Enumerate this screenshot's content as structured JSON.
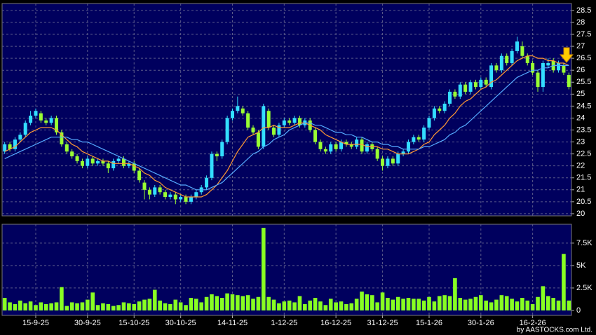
{
  "chart_data": [
    {
      "type": "candlestick",
      "xlim": [
        -0.5,
        109.5
      ],
      "xticks": [
        {
          "value": 6,
          "label": "15-9-25"
        },
        {
          "value": 16,
          "label": "30-9-25"
        },
        {
          "value": 25,
          "label": "15-10-25"
        },
        {
          "value": 34,
          "label": "30-10-25"
        },
        {
          "value": 44,
          "label": "14-11-25"
        },
        {
          "value": 54,
          "label": "1-12-25"
        },
        {
          "value": 64,
          "label": "16-12-25"
        },
        {
          "value": 73,
          "label": "31-12-25"
        },
        {
          "value": 82,
          "label": "15-1-26"
        },
        {
          "value": 92,
          "label": "30-1-26"
        },
        {
          "value": 102,
          "label": "16-2-26"
        }
      ],
      "ylim": [
        19.91,
        28.79
      ],
      "yticks": [
        20,
        20.5,
        21,
        21.5,
        22,
        22.5,
        23,
        23.5,
        24,
        24.5,
        25,
        25.5,
        26,
        26.5,
        27,
        27.5,
        28,
        28.5
      ],
      "grid": true,
      "up_color": "#33ddff",
      "down_color": "#99ff33",
      "series": [
        {
          "type": "candlestick",
          "open": [
            22.6,
            22.9,
            22.7,
            23.1,
            23.3,
            23.8,
            24.1,
            24.2,
            23.9,
            23.8,
            24.0,
            23.4,
            22.9,
            22.6,
            22.4,
            22.2,
            22.0,
            22.3,
            22.1,
            22.2,
            22.1,
            21.9,
            22.2,
            22.3,
            22.0,
            22.1,
            21.8,
            21.3,
            21.0,
            20.8,
            21.1,
            20.9,
            20.7,
            20.8,
            20.6,
            20.7,
            20.5,
            20.7,
            20.9,
            21.1,
            21.5,
            22.5,
            22.4,
            23.0,
            24.0,
            24.3,
            24.4,
            24.2,
            23.6,
            23.4,
            22.8,
            24.3,
            23.6,
            23.3,
            23.7,
            23.9,
            23.8,
            24.0,
            23.7,
            23.9,
            23.5,
            23.0,
            22.7,
            22.6,
            22.9,
            22.7,
            23.0,
            22.9,
            22.8,
            23.1,
            22.6,
            22.9,
            22.7,
            22.3,
            22.0,
            22.3,
            22.1,
            22.5,
            22.6,
            23.0,
            23.2,
            23.1,
            23.6,
            24.0,
            24.4,
            24.3,
            24.6,
            25.1,
            24.9,
            25.4,
            25.1,
            25.5,
            25.3,
            25.6,
            25.3,
            26.2,
            26.0,
            26.6,
            26.3,
            26.8,
            27.0,
            26.6,
            26.3,
            25.9,
            25.3,
            26.2,
            26.4,
            26.0,
            26.2,
            25.8
          ],
          "high": [
            23.0,
            23.0,
            23.2,
            23.4,
            23.9,
            24.3,
            24.4,
            24.3,
            24.0,
            24.1,
            24.1,
            23.5,
            23.0,
            22.7,
            22.5,
            22.3,
            22.4,
            22.4,
            22.3,
            22.3,
            22.2,
            22.3,
            22.4,
            22.4,
            22.2,
            22.2,
            21.9,
            21.4,
            21.1,
            21.2,
            21.2,
            21.0,
            20.9,
            20.9,
            20.8,
            20.8,
            20.8,
            21.0,
            21.2,
            21.6,
            22.6,
            22.6,
            23.1,
            24.1,
            24.4,
            24.9,
            24.5,
            24.3,
            23.7,
            23.5,
            24.6,
            24.4,
            23.7,
            23.8,
            24.0,
            24.0,
            24.1,
            24.1,
            24.0,
            24.0,
            23.6,
            23.1,
            22.8,
            23.0,
            23.0,
            23.1,
            23.1,
            23.0,
            23.2,
            23.2,
            23.0,
            23.0,
            22.8,
            22.4,
            22.4,
            22.4,
            22.6,
            22.7,
            23.1,
            23.3,
            23.3,
            23.7,
            24.1,
            24.5,
            24.5,
            24.7,
            25.2,
            25.2,
            25.5,
            25.5,
            25.6,
            25.6,
            25.7,
            25.7,
            26.3,
            26.3,
            26.7,
            26.7,
            26.9,
            27.4,
            27.2,
            26.7,
            26.4,
            26.0,
            26.4,
            26.5,
            26.5,
            26.4,
            26.3,
            25.9
          ],
          "low": [
            22.5,
            22.6,
            22.6,
            23.0,
            23.2,
            23.7,
            24.0,
            23.8,
            23.7,
            23.7,
            23.3,
            22.8,
            22.5,
            22.3,
            22.1,
            21.9,
            21.9,
            22.0,
            22.0,
            22.0,
            21.7,
            21.8,
            22.1,
            21.9,
            21.9,
            21.7,
            21.3,
            20.6,
            20.6,
            20.7,
            20.8,
            20.6,
            20.6,
            20.4,
            20.5,
            20.4,
            20.4,
            20.6,
            20.8,
            21.0,
            21.4,
            22.2,
            22.3,
            22.9,
            23.9,
            24.2,
            24.1,
            23.5,
            23.3,
            22.7,
            22.7,
            23.5,
            23.2,
            23.2,
            23.6,
            23.7,
            23.7,
            23.6,
            23.6,
            23.4,
            22.9,
            22.6,
            22.5,
            22.5,
            22.6,
            22.6,
            22.8,
            22.7,
            22.7,
            22.5,
            22.5,
            22.6,
            22.2,
            21.8,
            21.9,
            22.0,
            22.0,
            22.4,
            22.5,
            22.9,
            23.0,
            23.0,
            23.5,
            23.9,
            24.2,
            24.2,
            24.5,
            24.8,
            24.8,
            25.0,
            25.0,
            25.2,
            25.2,
            25.3,
            25.2,
            25.9,
            25.9,
            26.2,
            26.2,
            26.7,
            26.5,
            26.2,
            25.8,
            25.1,
            25.1,
            26.1,
            25.9,
            25.9,
            25.8,
            25.2
          ],
          "close": [
            22.9,
            22.7,
            23.1,
            23.3,
            23.8,
            24.1,
            24.3,
            23.9,
            23.8,
            24.0,
            23.4,
            22.9,
            22.6,
            22.4,
            22.2,
            22.0,
            22.3,
            22.1,
            22.2,
            22.1,
            21.9,
            22.2,
            22.3,
            22.0,
            22.1,
            21.8,
            21.4,
            21.0,
            20.8,
            21.1,
            20.9,
            20.7,
            20.8,
            20.6,
            20.7,
            20.5,
            20.7,
            20.9,
            21.1,
            21.5,
            22.5,
            22.4,
            23.0,
            24.0,
            24.3,
            24.5,
            24.2,
            23.6,
            23.4,
            22.8,
            24.5,
            23.6,
            23.3,
            23.7,
            23.9,
            23.8,
            24.0,
            23.7,
            23.9,
            23.5,
            23.0,
            22.7,
            22.6,
            22.9,
            22.7,
            23.0,
            22.9,
            22.8,
            23.1,
            22.6,
            22.9,
            22.7,
            22.3,
            22.0,
            22.3,
            22.1,
            22.5,
            22.6,
            23.0,
            23.2,
            23.1,
            23.6,
            24.0,
            24.4,
            24.3,
            24.6,
            25.1,
            24.9,
            25.4,
            25.1,
            25.5,
            25.3,
            25.6,
            25.4,
            26.2,
            26.0,
            26.6,
            26.3,
            26.8,
            27.2,
            26.6,
            26.3,
            25.9,
            25.3,
            26.3,
            26.3,
            26.0,
            26.3,
            25.9,
            25.3
          ]
        },
        {
          "type": "line",
          "color": "#ff9933",
          "values": [
            22.6,
            22.7,
            22.8,
            23.0,
            23.2,
            23.4,
            23.5,
            23.6,
            23.6,
            23.6,
            23.5,
            23.3,
            23.1,
            22.9,
            22.8,
            22.6,
            22.5,
            22.4,
            22.3,
            22.2,
            22.2,
            22.1,
            22.1,
            22.1,
            22.1,
            22.0,
            21.9,
            21.7,
            21.6,
            21.4,
            21.3,
            21.1,
            21.0,
            20.9,
            20.8,
            20.7,
            20.7,
            20.7,
            20.7,
            20.8,
            21.0,
            21.2,
            21.5,
            21.8,
            22.2,
            22.6,
            22.9,
            23.2,
            23.3,
            23.4,
            23.6,
            23.6,
            23.7,
            23.6,
            23.6,
            23.6,
            23.7,
            23.8,
            23.8,
            23.7,
            23.6,
            23.5,
            23.3,
            23.2,
            23.1,
            23.0,
            22.9,
            22.9,
            22.9,
            22.9,
            22.8,
            22.8,
            22.8,
            22.7,
            22.7,
            22.6,
            22.5,
            22.5,
            22.5,
            22.6,
            22.7,
            22.9,
            23.0,
            23.3,
            23.5,
            23.7,
            24.0,
            24.2,
            24.5,
            24.7,
            24.8,
            25.0,
            25.2,
            25.3,
            25.5,
            25.6,
            25.8,
            26.0,
            26.2,
            26.4,
            26.5,
            26.6,
            26.6,
            26.5,
            26.5,
            26.4,
            26.4,
            26.3,
            26.3,
            26.2
          ]
        },
        {
          "type": "line",
          "color": "#55aaff",
          "values": [
            22.3,
            22.4,
            22.5,
            22.6,
            22.7,
            22.8,
            22.9,
            23.0,
            23.1,
            23.2,
            23.2,
            23.2,
            23.2,
            23.1,
            23.1,
            23.0,
            23.0,
            22.9,
            22.8,
            22.7,
            22.6,
            22.5,
            22.4,
            22.3,
            22.2,
            22.1,
            22.0,
            21.9,
            21.8,
            21.7,
            21.6,
            21.5,
            21.4,
            21.3,
            21.2,
            21.2,
            21.1,
            21.0,
            21.0,
            21.0,
            21.1,
            21.2,
            21.3,
            21.5,
            21.7,
            21.9,
            22.1,
            22.3,
            22.5,
            22.6,
            22.8,
            22.9,
            23.1,
            23.2,
            23.3,
            23.5,
            23.6,
            23.7,
            23.8,
            23.8,
            23.7,
            23.7,
            23.6,
            23.5,
            23.4,
            23.4,
            23.3,
            23.3,
            23.2,
            23.2,
            23.1,
            23.0,
            23.0,
            22.9,
            22.9,
            22.8,
            22.8,
            22.7,
            22.7,
            22.7,
            22.7,
            22.8,
            22.8,
            22.9,
            23.0,
            23.1,
            23.3,
            23.4,
            23.6,
            23.7,
            23.9,
            24.1,
            24.3,
            24.5,
            24.7,
            24.9,
            25.1,
            25.3,
            25.5,
            25.7,
            25.8,
            25.9,
            26.0,
            26.0,
            26.1,
            26.1,
            26.2,
            26.2,
            26.2,
            26.2
          ]
        }
      ]
    },
    {
      "type": "bar",
      "ylim": [
        -550,
        9600
      ],
      "yticks": [
        0,
        {
          "value": 2500,
          "label": "2.5K"
        },
        {
          "value": 5000,
          "label": "5K"
        },
        {
          "value": 7500,
          "label": "7.5K"
        }
      ],
      "grid": true,
      "color": "#88ff22",
      "values": [
        1400,
        900,
        700,
        1100,
        800,
        1000,
        600,
        900,
        700,
        800,
        900,
        2600,
        500,
        900,
        800,
        900,
        1200,
        2000,
        600,
        800,
        700,
        500,
        600,
        900,
        800,
        700,
        1000,
        1200,
        1300,
        2300,
        1100,
        800,
        700,
        1200,
        900,
        600,
        1400,
        1300,
        900,
        1500,
        1800,
        1600,
        1400,
        1900,
        1800,
        1700,
        1600,
        1700,
        1300,
        1500,
        9200,
        1500,
        1200,
        800,
        1000,
        1100,
        900,
        1600,
        700,
        1100,
        1400,
        1000,
        600,
        1300,
        900,
        1000,
        700,
        800,
        1300,
        2100,
        1800,
        1700,
        900,
        2000,
        1400,
        1200,
        1500,
        1300,
        1400,
        1300,
        1300,
        1100,
        1500,
        1000,
        1600,
        1700,
        1600,
        3600,
        1400,
        1200,
        1300,
        1500,
        1700,
        1100,
        900,
        1200,
        1700,
        1600,
        1300,
        1000,
        1400,
        1100,
        700,
        1500,
        2700,
        1600,
        1400,
        1100,
        6300,
        1100
      ]
    }
  ],
  "credit": "by AASTOCKS.com Ltd."
}
